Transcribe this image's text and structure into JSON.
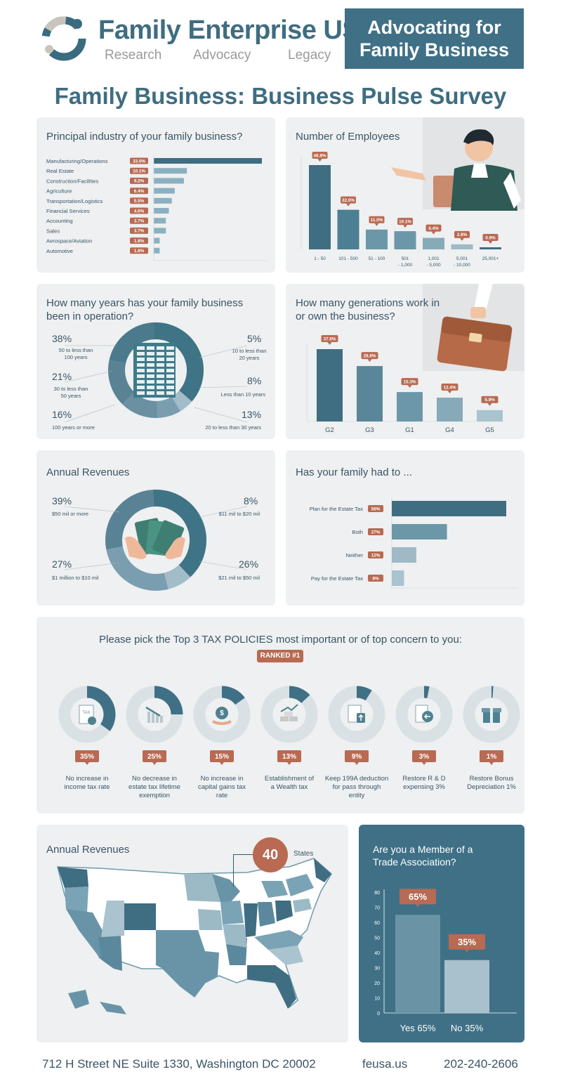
{
  "header": {
    "brand": "Family Enterprise USA",
    "tag1": "Research",
    "tag2": "Advocacy",
    "tag3": "Legacy",
    "banner_line1": "Advocating for",
    "banner_line2": "Family Business",
    "main_title": "Family Business: Business Pulse Survey"
  },
  "industry": {
    "title": "Principal industry of your family business?",
    "items": [
      {
        "label": "Manufacturing/Operations",
        "pct": "33.0%",
        "value": 33.0
      },
      {
        "label": "Real Estate",
        "pct": "10.1%",
        "value": 10.1
      },
      {
        "label": "Construction/Facilities",
        "pct": "9.2%",
        "value": 9.2
      },
      {
        "label": "Agriculture",
        "pct": "6.4%",
        "value": 6.4
      },
      {
        "label": "Transportation/Logistics",
        "pct": "5.5%",
        "value": 5.5
      },
      {
        "label": "Financial Services",
        "pct": "4.6%",
        "value": 4.6
      },
      {
        "label": "Accounting",
        "pct": "3.7%",
        "value": 3.7
      },
      {
        "label": "Sales",
        "pct": "3.7%",
        "value": 3.7
      },
      {
        "label": "Aerospace/Aviation",
        "pct": "1.8%",
        "value": 1.8
      },
      {
        "label": "Automotive",
        "pct": "1.8%",
        "value": 1.8
      }
    ]
  },
  "employees": {
    "title": "Number of Employees",
    "bars": [
      {
        "label1": "1 - 50",
        "label2": "",
        "pct": "46.8%",
        "value": 46.8
      },
      {
        "label1": "101 - 500",
        "label2": "",
        "pct": "22.0%",
        "value": 22.0
      },
      {
        "label1": "51 - 100",
        "label2": "",
        "pct": "11.0%",
        "value": 11.0
      },
      {
        "label1": "501",
        "label2": "- 1,000",
        "pct": "10.1%",
        "value": 10.1
      },
      {
        "label1": "1,001",
        "label2": "- 5,000",
        "pct": "6.4%",
        "value": 6.4
      },
      {
        "label1": "5,001",
        "label2": "- 10,000",
        "pct": "2.8%",
        "value": 2.8
      },
      {
        "label1": "25,001+",
        "label2": "",
        "pct": "0.9%",
        "value": 0.9
      }
    ]
  },
  "years": {
    "title1": "How many years has your family business",
    "title2": "been in operation?",
    "segments": [
      {
        "pct": "38%",
        "label1": "50 to less than",
        "label2": "100 years",
        "value": 38
      },
      {
        "pct": "5%",
        "label1": "10 to less than",
        "label2": "20 years",
        "value": 5
      },
      {
        "pct": "8%",
        "label1": "Less than 10 years",
        "label2": "",
        "value": 8
      },
      {
        "pct": "13%",
        "label1": "20 to less than 30 years",
        "label2": "",
        "value": 13
      },
      {
        "pct": "16%",
        "label1": "100 years or more",
        "label2": "",
        "value": 16
      },
      {
        "pct": "21%",
        "label1": "30 to less than",
        "label2": "50 years",
        "value": 21
      }
    ]
  },
  "generations": {
    "title1": "How many generations work in",
    "title2": "or own the business?",
    "bars": [
      {
        "label": "G2",
        "pct": "37.6%",
        "value": 37.6
      },
      {
        "label": "G3",
        "pct": "28.8%",
        "value": 28.8
      },
      {
        "label": "G1",
        "pct": "15.3%",
        "value": 15.3
      },
      {
        "label": "G4",
        "pct": "12.4%",
        "value": 12.4
      },
      {
        "label": "G5",
        "pct": "5.9%",
        "value": 5.9
      }
    ]
  },
  "revenues": {
    "title": "Annual Revenues",
    "segments": [
      {
        "pct": "39%",
        "label": "$50 mil or more",
        "value": 39
      },
      {
        "pct": "8%",
        "label": "$11 mil to $20 mil",
        "value": 8
      },
      {
        "pct": "26%",
        "label": "$21 mil to $50 mil",
        "value": 26
      },
      {
        "pct": "27%",
        "label": "$1 million to $10 mil",
        "value": 27
      }
    ]
  },
  "estate": {
    "title": "Has your family had to ...",
    "bars": [
      {
        "label": "Plan for the Estate Tax",
        "pct": "56%",
        "value": 56
      },
      {
        "label": "Both",
        "pct": "27%",
        "value": 27
      },
      {
        "label": "Neither",
        "pct": "12%",
        "value": 12
      },
      {
        "label": "Pay for the Estate Tax",
        "pct": "6%",
        "value": 6
      }
    ]
  },
  "tax": {
    "title": "Please pick the Top 3 TAX POLICIES most important or of top concern to you:",
    "ranked": "RANKED #1",
    "items": [
      {
        "pct": "35%",
        "value": 35,
        "l1": "No increase in",
        "l2": "income tax rate",
        "l3": "",
        "icon": "tax-document-icon"
      },
      {
        "pct": "25%",
        "value": 25,
        "l1": "No decrease in",
        "l2": "estate tax lifetime",
        "l3": "exemption",
        "icon": "declining-chart-icon"
      },
      {
        "pct": "15%",
        "value": 15,
        "l1": "No increase in",
        "l2": "capital gains tax",
        "l3": "rate",
        "icon": "money-bag-icon"
      },
      {
        "pct": "13%",
        "value": 13,
        "l1": "Establishment of",
        "l2": "a Wealth tax",
        "l3": "",
        "icon": "gold-bars-icon"
      },
      {
        "pct": "9%",
        "value": 9,
        "l1": "Keep 199A deduction",
        "l2": "for pass through",
        "l3": "entity",
        "icon": "document-upload-icon"
      },
      {
        "pct": "3%",
        "value": 3,
        "l1": "Restore R & D",
        "l2": "expensing 3%",
        "l3": "",
        "icon": "receipt-arrow-icon"
      },
      {
        "pct": "1%",
        "value": 1,
        "l1": "Restore Bonus",
        "l2": "Depreciation 1%",
        "l3": "",
        "icon": "gift-icon"
      }
    ]
  },
  "map": {
    "title": "Annual Revenues",
    "count": "40",
    "count_label": "States"
  },
  "member": {
    "title1": "Are you a Member of a",
    "title2": "Trade Association?",
    "bars": [
      {
        "label": "Yes 65%",
        "pct": "65%",
        "value": 65
      },
      {
        "label": "No 35%",
        "pct": "35%",
        "value": 35
      }
    ],
    "yticks": [
      "80",
      "70",
      "60",
      "50",
      "40",
      "30",
      "20",
      "10",
      "0"
    ]
  },
  "footer": {
    "address": "712 H Street NE Suite 1330, Washington DC 20002",
    "site": "feusa.us",
    "phone": "202-240-2606"
  },
  "chart_data": [
    {
      "type": "bar",
      "title": "Principal industry of your family business?",
      "categories": [
        "Manufacturing/Operations",
        "Real Estate",
        "Construction/Facilities",
        "Agriculture",
        "Transportation/Logistics",
        "Financial Services",
        "Accounting",
        "Sales",
        "Aerospace/Aviation",
        "Automotive"
      ],
      "values": [
        33.0,
        10.1,
        9.2,
        6.4,
        5.5,
        4.6,
        3.7,
        3.7,
        1.8,
        1.8
      ]
    },
    {
      "type": "bar",
      "title": "Number of Employees",
      "categories": [
        "1 - 50",
        "101 - 500",
        "51 - 100",
        "501 - 1,000",
        "1,001 - 5,000",
        "5,001 - 10,000",
        "25,001+"
      ],
      "values": [
        46.8,
        22.0,
        11.0,
        10.1,
        6.4,
        2.8,
        0.9
      ]
    },
    {
      "type": "pie",
      "title": "How many years has your family business been in operation?",
      "categories": [
        "50 to less than 100 years",
        "10 to less than 20 years",
        "Less than 10 years",
        "20 to less than 30 years",
        "100 years or more",
        "30 to less than 50 years"
      ],
      "values": [
        38,
        5,
        8,
        13,
        16,
        21
      ]
    },
    {
      "type": "bar",
      "title": "How many generations work in or own the business?",
      "categories": [
        "G2",
        "G3",
        "G1",
        "G4",
        "G5"
      ],
      "values": [
        37.6,
        28.8,
        15.3,
        12.4,
        5.9
      ]
    },
    {
      "type": "pie",
      "title": "Annual Revenues",
      "categories": [
        "$50 mil or more",
        "$11 mil to $20 mil",
        "$21 mil to $50 mil",
        "$1 million to $10 mil"
      ],
      "values": [
        39,
        8,
        26,
        27
      ]
    },
    {
      "type": "bar",
      "title": "Has your family had to ...",
      "categories": [
        "Plan for the Estate Tax",
        "Both",
        "Neither",
        "Pay for the Estate Tax"
      ],
      "values": [
        56,
        27,
        12,
        6
      ]
    },
    {
      "type": "pie",
      "title": "Please pick the Top 3 TAX POLICIES most important or of top concern to you:",
      "categories": [
        "No increase in income tax rate",
        "No decrease in estate tax lifetime exemption",
        "No increase in capital gains tax rate",
        "Establishment of a Wealth tax",
        "Keep 199A deduction for pass through entity",
        "Restore R & D expensing 3%",
        "Restore Bonus Depreciation 1%"
      ],
      "values": [
        35,
        25,
        15,
        13,
        9,
        3,
        1
      ]
    },
    {
      "type": "bar",
      "title": "Are you a Member of a Trade Association?",
      "categories": [
        "Yes 65%",
        "No 35%"
      ],
      "values": [
        65,
        35
      ],
      "ylim": [
        0,
        80
      ]
    }
  ]
}
